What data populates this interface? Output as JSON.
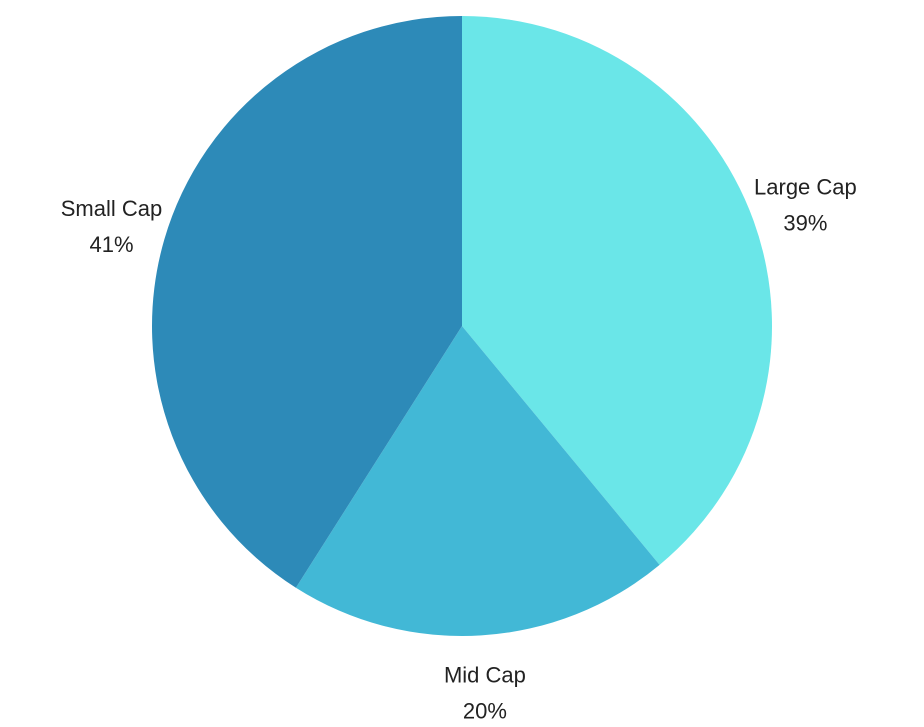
{
  "chart_data": {
    "type": "pie",
    "slices": [
      {
        "label": "Large Cap",
        "value": 39,
        "value_label": "39%",
        "color": "#6ae6e8"
      },
      {
        "label": "Mid Cap",
        "value": 20,
        "value_label": "20%",
        "color": "#42b8d6"
      },
      {
        "label": "Small Cap",
        "value": 41,
        "value_label": "41%",
        "color": "#2d8ab8"
      }
    ],
    "start_angle": "12 o'clock",
    "direction": "clockwise",
    "legend": "none",
    "labels": "outside"
  }
}
